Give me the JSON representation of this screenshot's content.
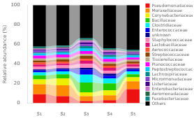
{
  "chart_data": {
    "type": "bar",
    "stacked": true,
    "ylabel": "Relative abundance (%)",
    "categories": [
      "s₁",
      "s₂",
      "s₃",
      "s₄",
      "s₅"
    ],
    "ylim": [
      0,
      100
    ],
    "yticks": [
      0,
      20,
      40,
      60,
      80,
      100
    ],
    "grid": false,
    "legend": "right",
    "series": [
      {
        "name": "Pseudomonadaceae",
        "color": "#EE1111",
        "values": [
          9.0909,
          7.0707,
          2,
          3,
          14.1414
        ]
      },
      {
        "name": "Moraxellaceae",
        "color": "#FF8C00",
        "values": [
          10.101,
          11.1111,
          5,
          5,
          8.0808
        ]
      },
      {
        "name": "Corynebacteriaceae",
        "color": "#EEEE00",
        "values": [
          5.0505,
          7.0707,
          4,
          5,
          4.0404
        ]
      },
      {
        "name": "Bacillaceae",
        "color": "#22CC00",
        "values": [
          4.0404,
          4.0404,
          10,
          7,
          3.0303
        ]
      },
      {
        "name": "Clostridiaceae",
        "color": "#00EEEE",
        "values": [
          3.0303,
          3.0303,
          8,
          5,
          3.0303
        ]
      },
      {
        "name": "Enterococcaceae",
        "color": "#0000EE",
        "values": [
          2.0202,
          2.0202,
          5,
          3,
          2.0202
        ]
      },
      {
        "name": "unknown",
        "color": "#000088",
        "values": [
          1.0101,
          1.0101,
          2,
          2,
          1.0101
        ]
      },
      {
        "name": "Staphylococcaceae",
        "color": "#FF88BB",
        "values": [
          3.0303,
          3.0303,
          4,
          3,
          2.0202
        ]
      },
      {
        "name": "Lactobacillaceae",
        "color": "#DD1177",
        "values": [
          2.0202,
          2.0202,
          3,
          3,
          2.0202
        ]
      },
      {
        "name": "Aerococcaceae",
        "color": "#FF5533",
        "values": [
          2.0202,
          2.0202,
          2,
          2,
          1.0101
        ]
      },
      {
        "name": "Streptococcaceae",
        "color": "#884400",
        "values": [
          2.0202,
          2.0202,
          3,
          2,
          2.0202
        ]
      },
      {
        "name": "Tissierellaceae",
        "color": "#BBAA88",
        "values": [
          2.0202,
          2.0202,
          2,
          2,
          2.0202
        ]
      },
      {
        "name": "Planococcaceae",
        "color": "#FF00FF",
        "values": [
          3.0303,
          3.0303,
          3,
          3,
          2.0202
        ]
      },
      {
        "name": "Peptostreptococcaceae",
        "color": "#00CCFF",
        "values": [
          2.0202,
          2.0202,
          3,
          2,
          2.0202
        ]
      },
      {
        "name": "Lachnospiraceae",
        "color": "#008888",
        "values": [
          1.0101,
          1.0101,
          2,
          2,
          1.0101
        ]
      },
      {
        "name": "Micrormonadaceae",
        "color": "#8844CC",
        "values": [
          2.0202,
          2.0202,
          2,
          2,
          1.0101
        ]
      },
      {
        "name": "Listeriaceae",
        "color": "#440088",
        "values": [
          1.0101,
          1.0101,
          2,
          1,
          1.0101
        ]
      },
      {
        "name": "Enterobacteriaceae",
        "color": "#CC77CC",
        "values": [
          1.0101,
          1.0101,
          2,
          2,
          1.0101
        ]
      },
      {
        "name": "Aeromonadaceae",
        "color": "#226644",
        "values": [
          1.0101,
          1.0101,
          1,
          1,
          1.0101
        ]
      },
      {
        "name": "Fusobacteriaceae",
        "color": "#118888",
        "values": [
          1.0101,
          1.0101,
          1,
          1,
          1.0101
        ]
      },
      {
        "name": "Others",
        "color": "#000000",
        "values": [
          42.4242,
          41.4141,
          34,
          44,
          45.4545
        ]
      }
    ]
  }
}
